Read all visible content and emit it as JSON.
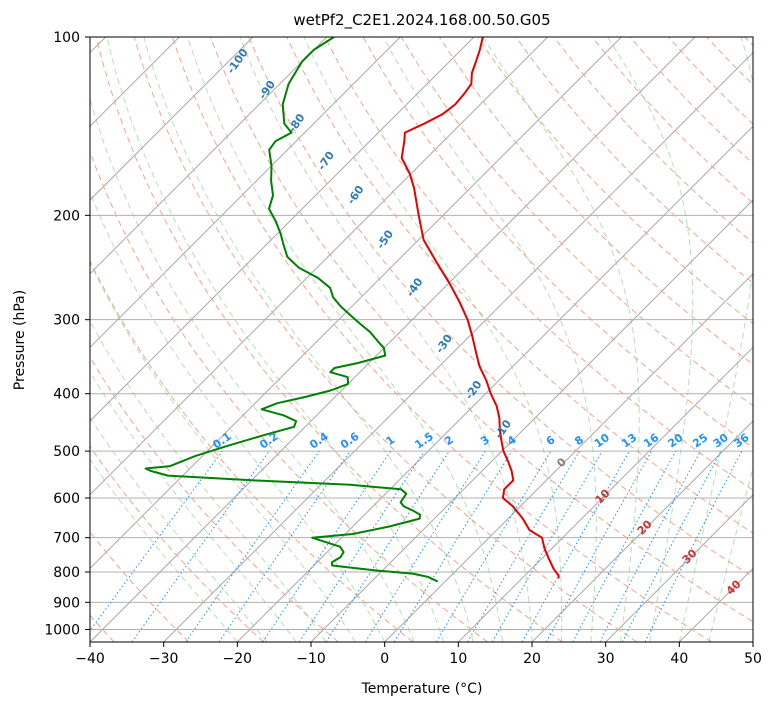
{
  "chart_data": {
    "type": "line",
    "subtype": "skew-T log-p diagram",
    "title": "wetPf2_C2E1.2024.168.00.50.G05",
    "xlabel": "Temperature (°C)",
    "ylabel": "Pressure (hPa)",
    "xlim": [
      -40,
      50
    ],
    "ylim": [
      1050,
      100
    ],
    "y_scale": "log",
    "x_ticks": [
      "−40",
      "−30",
      "−20",
      "−10",
      "0",
      "10",
      "20",
      "30",
      "40",
      "50"
    ],
    "y_ticks": [
      "100",
      "200",
      "300",
      "400",
      "500",
      "600",
      "700",
      "800",
      "900",
      "1000"
    ],
    "grid": true,
    "series": [
      {
        "name": "",
        "color": "#e60000",
        "points": [
          [
            820,
            15.0
          ],
          [
            810,
            14.5
          ],
          [
            790,
            13.0
          ],
          [
            760,
            11.0
          ],
          [
            730,
            9.0
          ],
          [
            700,
            7.2
          ],
          [
            680,
            4.5
          ],
          [
            650,
            2.0
          ],
          [
            620,
            -1.0
          ],
          [
            600,
            -3.5
          ],
          [
            580,
            -4.5
          ],
          [
            560,
            -4.5
          ],
          [
            540,
            -6.0
          ],
          [
            520,
            -7.8
          ],
          [
            500,
            -9.8
          ],
          [
            480,
            -11.5
          ],
          [
            460,
            -13.2
          ],
          [
            440,
            -14.8
          ],
          [
            420,
            -16.8
          ],
          [
            400,
            -19.3
          ],
          [
            380,
            -21.7
          ],
          [
            360,
            -24.5
          ],
          [
            340,
            -27.0
          ],
          [
            320,
            -29.6
          ],
          [
            300,
            -32.5
          ],
          [
            280,
            -36.0
          ],
          [
            260,
            -40.0
          ],
          [
            240,
            -44.5
          ],
          [
            220,
            -49.3
          ],
          [
            200,
            -53.3
          ],
          [
            180,
            -57.6
          ],
          [
            170,
            -60.2
          ],
          [
            160,
            -63.4
          ],
          [
            150,
            -65.3
          ],
          [
            145,
            -66.4
          ],
          [
            140,
            -65.0
          ],
          [
            135,
            -63.8
          ],
          [
            130,
            -63.4
          ],
          [
            125,
            -63.6
          ],
          [
            120,
            -64.0
          ],
          [
            115,
            -65.4
          ],
          [
            110,
            -66.4
          ],
          [
            105,
            -67.5
          ],
          [
            100,
            -68.8
          ]
        ]
      },
      {
        "name": "",
        "color": "#008000",
        "points": [
          [
            830,
            -1.0
          ],
          [
            815,
            -3.0
          ],
          [
            805,
            -5.5
          ],
          [
            795,
            -11.0
          ],
          [
            780,
            -17.5
          ],
          [
            770,
            -18.0
          ],
          [
            755,
            -17.5
          ],
          [
            740,
            -17.8
          ],
          [
            725,
            -19.0
          ],
          [
            710,
            -22.0
          ],
          [
            700,
            -24.0
          ],
          [
            690,
            -19.0
          ],
          [
            670,
            -15.0
          ],
          [
            650,
            -12.0
          ],
          [
            640,
            -12.5
          ],
          [
            630,
            -14.0
          ],
          [
            620,
            -15.8
          ],
          [
            610,
            -16.8
          ],
          [
            600,
            -17.0
          ],
          [
            590,
            -17.2
          ],
          [
            580,
            -18.5
          ],
          [
            570,
            -26.0
          ],
          [
            560,
            -40.0
          ],
          [
            550,
            -52.0
          ],
          [
            540,
            -55.0
          ],
          [
            535,
            -56.0
          ],
          [
            530,
            -53.0
          ],
          [
            520,
            -52.0
          ],
          [
            510,
            -51.0
          ],
          [
            490,
            -48.0
          ],
          [
            470,
            -44.5
          ],
          [
            455,
            -41.5
          ],
          [
            445,
            -42.0
          ],
          [
            435,
            -44.5
          ],
          [
            425,
            -48.3
          ],
          [
            415,
            -47.0
          ],
          [
            405,
            -44.0
          ],
          [
            395,
            -41.5
          ],
          [
            385,
            -40.0
          ],
          [
            375,
            -41.0
          ],
          [
            368,
            -44.0
          ],
          [
            362,
            -44.0
          ],
          [
            355,
            -41.5
          ],
          [
            345,
            -38.8
          ],
          [
            335,
            -40.0
          ],
          [
            325,
            -42.0
          ],
          [
            315,
            -44.0
          ],
          [
            305,
            -46.5
          ],
          [
            295,
            -49.0
          ],
          [
            285,
            -51.5
          ],
          [
            275,
            -53.8
          ],
          [
            265,
            -55.5
          ],
          [
            255,
            -58.5
          ],
          [
            245,
            -62.5
          ],
          [
            235,
            -65.5
          ],
          [
            225,
            -67.5
          ],
          [
            215,
            -69.5
          ],
          [
            205,
            -71.8
          ],
          [
            195,
            -74.5
          ],
          [
            185,
            -75.8
          ],
          [
            175,
            -78.0
          ],
          [
            165,
            -80.0
          ],
          [
            155,
            -82.5
          ],
          [
            150,
            -82.8
          ],
          [
            145,
            -81.8
          ],
          [
            140,
            -84.0
          ],
          [
            130,
            -86.8
          ],
          [
            120,
            -88.8
          ],
          [
            110,
            -90.0
          ],
          [
            105,
            -90.0
          ],
          [
            100,
            -89.0
          ]
        ]
      }
    ],
    "dry_adiabat_labels": [
      "-100",
      "-90",
      "-80",
      "-70",
      "-60",
      "-50",
      "-40",
      "-30",
      "-20",
      "-10"
    ],
    "moist_adiabat_labels": [
      "0",
      "10",
      "20",
      "30",
      "40"
    ],
    "mixing_ratio_labels": [
      "0.1",
      "0.2",
      "0.4",
      "0.6",
      "1",
      "1.5",
      "2",
      "3",
      "4",
      "6",
      "8",
      "10",
      "13",
      "16",
      "20",
      "25",
      "30",
      "36"
    ],
    "colors": {
      "temperature": "#e60000",
      "dewpoint": "#008000",
      "isotherms": "#9e9e9e",
      "dry_adiabats": "#f08060",
      "moist_adiabats": "#4caf50",
      "mixing_ratio": "#1e90ff"
    }
  }
}
